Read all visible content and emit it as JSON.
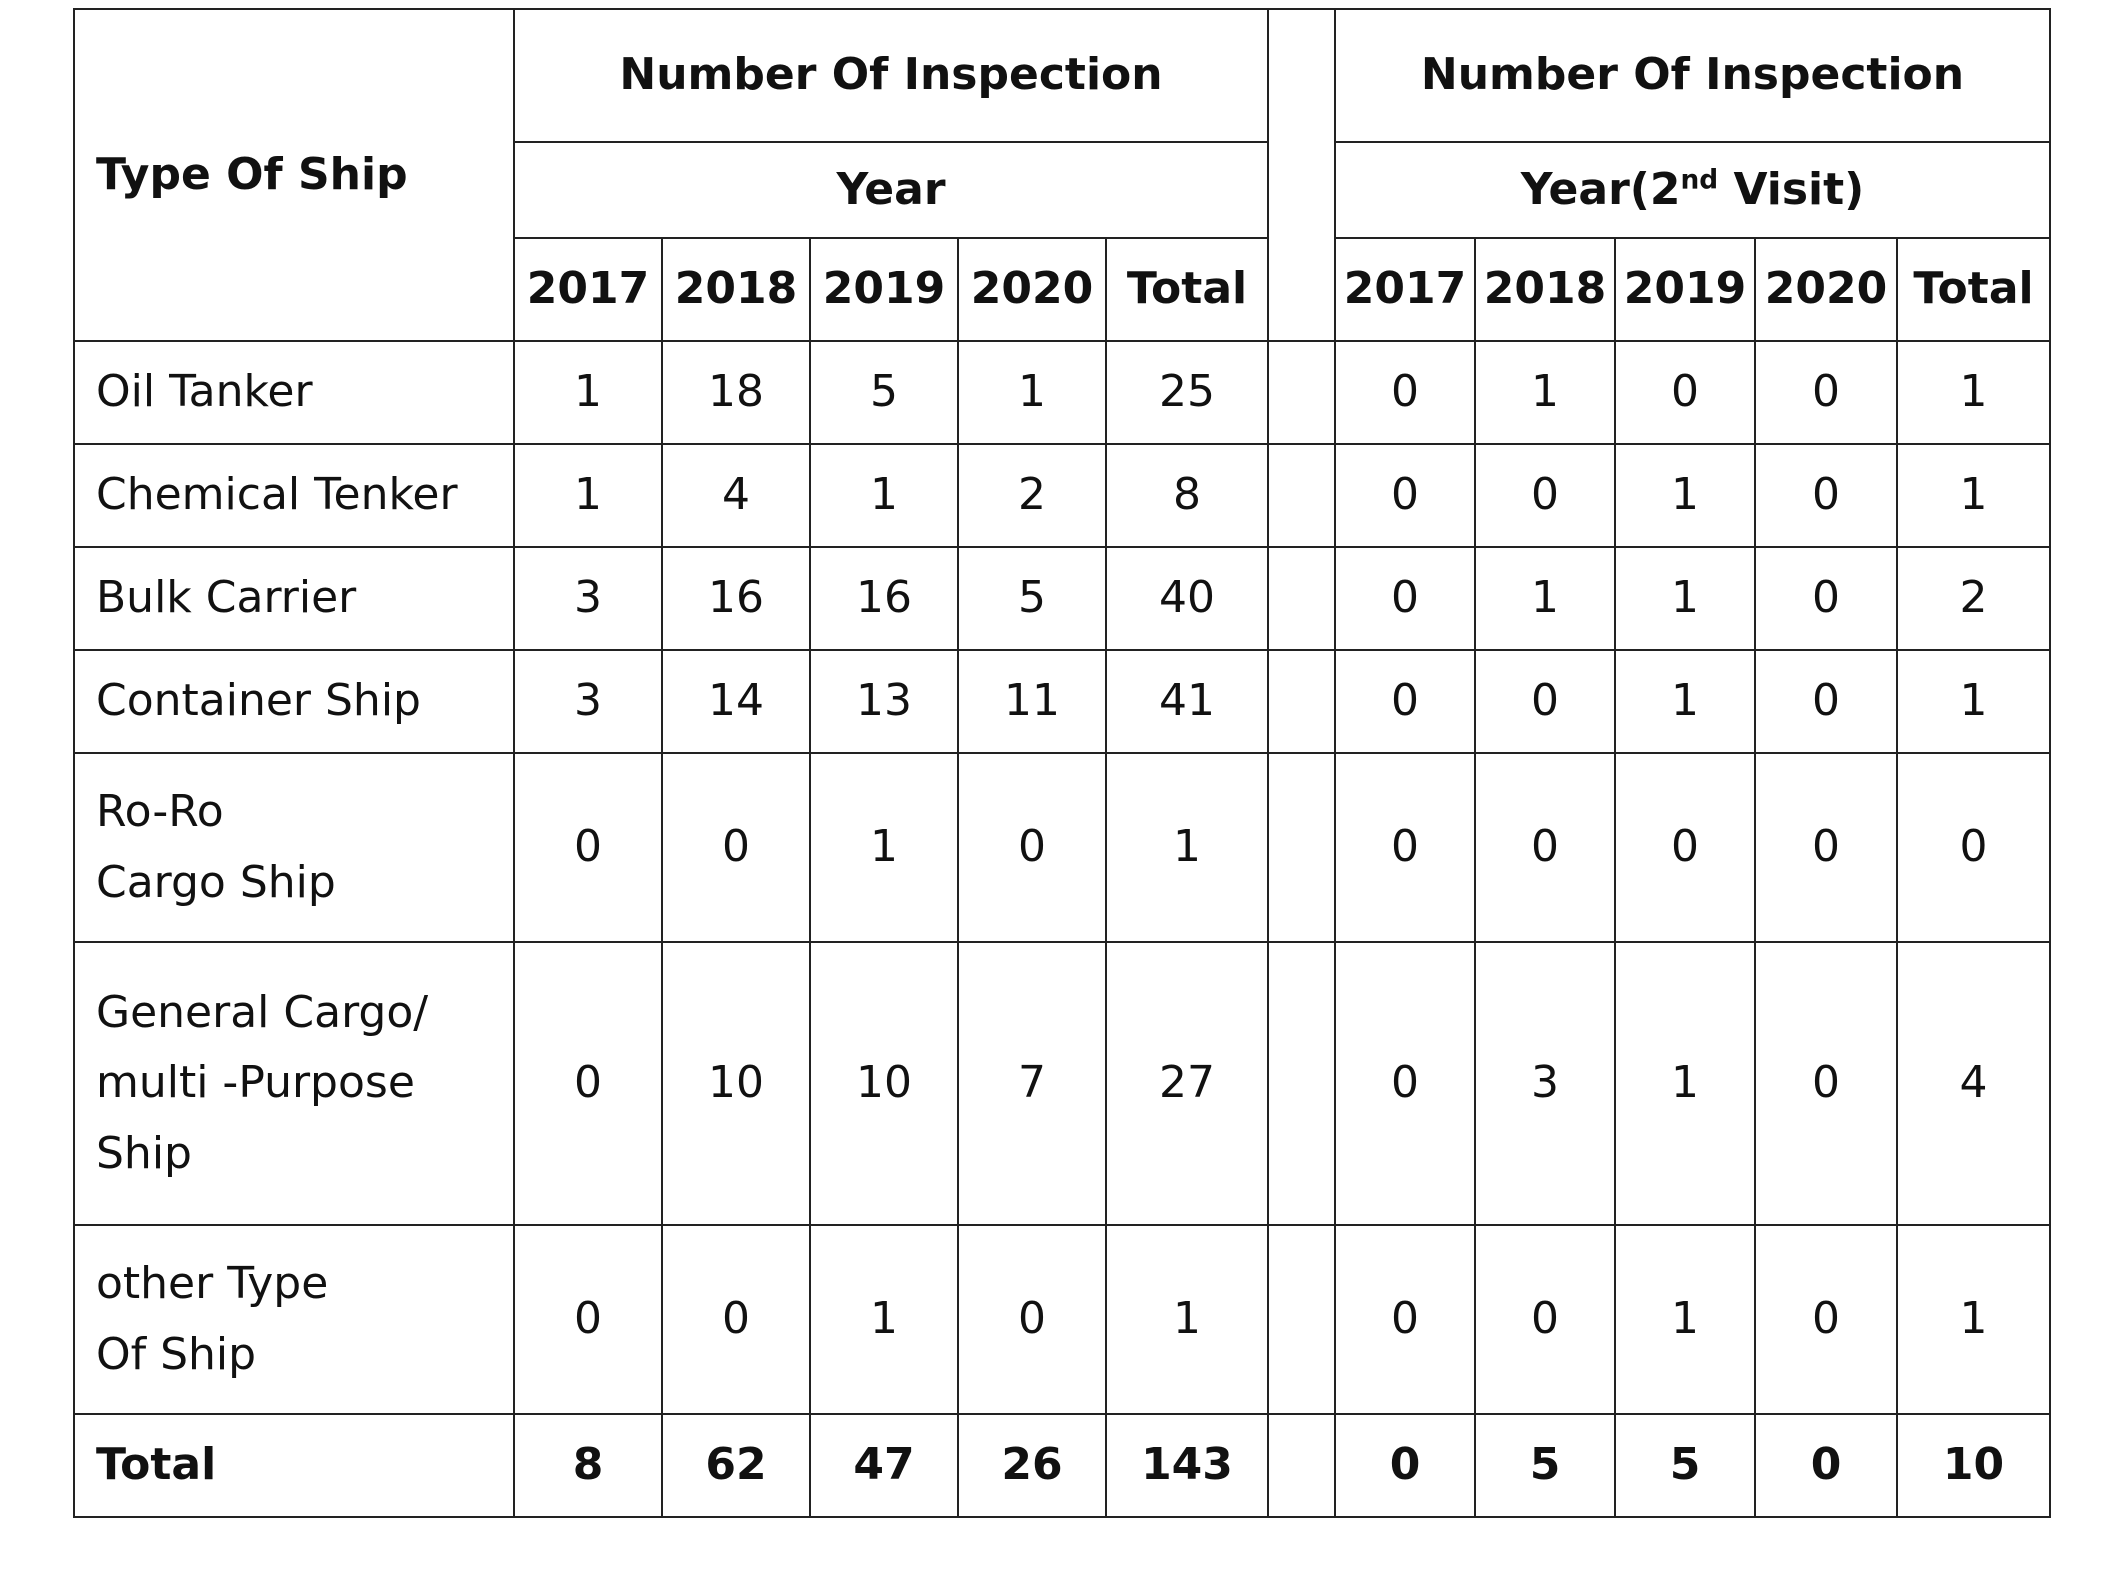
{
  "header": {
    "type_of_ship": "Type Of Ship",
    "group_first": {
      "title": "Number Of Inspection",
      "subtitle": "Year"
    },
    "group_second": {
      "title": "Number Of Inspection",
      "subtitle_prefix": "Year(2",
      "subtitle_sup": "nd",
      "subtitle_suffix": " Visit)"
    },
    "columns": [
      "2017",
      "2018",
      "2019",
      "2020",
      "Total"
    ]
  },
  "rows": [
    {
      "type_lines": [
        "Oil Tanker"
      ],
      "first": [
        "1",
        "18",
        "5",
        "1",
        "25"
      ],
      "second": [
        "0",
        "1",
        "0",
        "0",
        "1"
      ]
    },
    {
      "type_lines": [
        "Chemical Tenker"
      ],
      "first": [
        "1",
        "4",
        "1",
        "2",
        "8"
      ],
      "second": [
        "0",
        "0",
        "1",
        "0",
        "1"
      ]
    },
    {
      "type_lines": [
        "Bulk Carrier"
      ],
      "first": [
        "3",
        "16",
        "16",
        "5",
        "40"
      ],
      "second": [
        "0",
        "1",
        "1",
        "0",
        "2"
      ]
    },
    {
      "type_lines": [
        "Container Ship"
      ],
      "first": [
        "3",
        "14",
        "13",
        "11",
        "41"
      ],
      "second": [
        "0",
        "0",
        "1",
        "0",
        "1"
      ]
    },
    {
      "type_lines": [
        "Ro-Ro",
        "Cargo Ship"
      ],
      "first": [
        "0",
        "0",
        "1",
        "0",
        "1"
      ],
      "second": [
        "0",
        "0",
        "0",
        "0",
        "0"
      ]
    },
    {
      "type_lines": [
        "General Cargo/",
        "multi -Purpose",
        "Ship"
      ],
      "first": [
        "0",
        "10",
        "10",
        "7",
        "27"
      ],
      "second": [
        "0",
        "3",
        "1",
        "0",
        "4"
      ]
    },
    {
      "type_lines": [
        "other Type",
        "Of Ship"
      ],
      "first": [
        "0",
        "0",
        "1",
        "0",
        "1"
      ],
      "second": [
        "0",
        "0",
        "1",
        "0",
        "1"
      ]
    }
  ],
  "total": {
    "label": "Total",
    "first": [
      "8",
      "62",
      "47",
      "26",
      "143"
    ],
    "second": [
      "0",
      "5",
      "5",
      "0",
      "10"
    ]
  }
}
